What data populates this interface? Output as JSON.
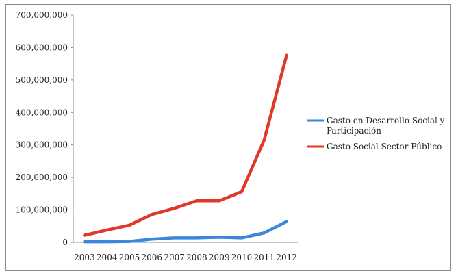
{
  "chart_data": {
    "type": "line",
    "categories": [
      "2003",
      "2004",
      "2005",
      "2006",
      "2007",
      "2008",
      "2009",
      "2010",
      "2011",
      "2012"
    ],
    "series": [
      {
        "name": "Gasto en Desarrollo Social y Participación",
        "name_lines": [
          "Gasto en Desarrollo Social y",
          "Participación"
        ],
        "color": "#3a87dc",
        "values": [
          2000000,
          2000000,
          3000000,
          10000000,
          14000000,
          14000000,
          16000000,
          14000000,
          29000000,
          64000000
        ]
      },
      {
        "name": "Gasto Social Sector Público",
        "name_lines": [
          "Gasto Social Sector Público"
        ],
        "color": "#e0392a",
        "values": [
          22000000,
          38000000,
          53000000,
          86000000,
          105000000,
          128000000,
          128000000,
          156000000,
          315000000,
          576000000
        ]
      }
    ],
    "yticks": [
      "0",
      "100,000,000",
      "200,000,000",
      "300,000,000",
      "400,000,000",
      "500,000,000",
      "600,000,000",
      "700,000,000"
    ],
    "ytick_values": [
      0,
      100000000,
      200000000,
      300000000,
      400000000,
      500000000,
      600000000,
      700000000
    ],
    "ylim": [
      0,
      700000000
    ],
    "grid": false,
    "legend_position": "right"
  }
}
